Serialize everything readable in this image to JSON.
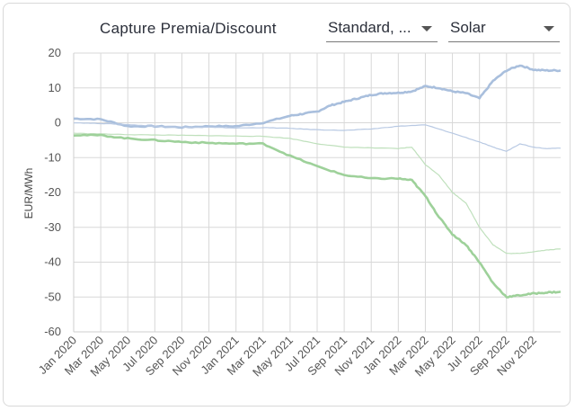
{
  "header": {
    "title": "Capture Premia/Discount",
    "method_select": "Standard, ...",
    "tech_select": "Solar"
  },
  "chart_data": {
    "type": "line",
    "ylabel": "EUR/MWh",
    "ylim": [
      -60,
      20
    ],
    "yticks": [
      20,
      10,
      0,
      -10,
      -20,
      -30,
      -40,
      -50,
      -60
    ],
    "xticks": [
      "Jan 2020",
      "Mar 2020",
      "May 2020",
      "Jul 2020",
      "Sep 2020",
      "Nov 2020",
      "Jan 2021",
      "Mar 2021",
      "May 2021",
      "Jul 2021",
      "Sep 2021",
      "Nov 2021",
      "Jan 2022",
      "Mar 2022",
      "May 2022",
      "Jul 2022",
      "Sep 2022",
      "Nov 2022"
    ],
    "grid": true,
    "series": [
      {
        "color": "#a9bfdd",
        "width": 2.6,
        "x": [
          "2020-01",
          "2020-03",
          "2020-05",
          "2020-07",
          "2020-09",
          "2020-11",
          "2021-01",
          "2021-03",
          "2021-05",
          "2021-06",
          "2021-07",
          "2021-08",
          "2021-09",
          "2021-10",
          "2021-11",
          "2021-12",
          "2022-01",
          "2022-02",
          "2022-03",
          "2022-04",
          "2022-05",
          "2022-06",
          "2022-07",
          "2022-08",
          "2022-09",
          "2022-10",
          "2022-11",
          "2022-12",
          "2023-01"
        ],
        "values": [
          1.2,
          1,
          -1,
          -1,
          -1.3,
          -1,
          -1,
          0,
          2,
          2.6,
          3.2,
          5,
          6,
          7,
          8,
          8.5,
          8.6,
          9,
          10.5,
          10,
          9,
          8.5,
          7,
          12,
          15,
          16.5,
          15.2,
          15,
          15
        ]
      },
      {
        "color": "#b8c9e3",
        "width": 1.2,
        "x": [
          "2020-01",
          "2020-03",
          "2020-05",
          "2020-07",
          "2020-09",
          "2020-11",
          "2021-01",
          "2021-03",
          "2021-05",
          "2021-07",
          "2021-09",
          "2021-11",
          "2022-01",
          "2022-03",
          "2022-05",
          "2022-07",
          "2022-08",
          "2022-09",
          "2022-10",
          "2022-11",
          "2022-12",
          "2023-01"
        ],
        "values": [
          0,
          -0.2,
          -0.5,
          -1,
          -1.2,
          -1.3,
          -1.5,
          -1.4,
          -1.6,
          -2,
          -2.2,
          -1.8,
          -1,
          -0.6,
          -3,
          -5.5,
          -7,
          -8.2,
          -6,
          -7,
          -7.4,
          -7.3
        ]
      },
      {
        "color": "#bfe0bc",
        "width": 1.2,
        "x": [
          "2020-01",
          "2020-03",
          "2020-05",
          "2020-07",
          "2020-09",
          "2020-11",
          "2021-01",
          "2021-03",
          "2021-05",
          "2021-07",
          "2021-09",
          "2021-11",
          "2022-01",
          "2022-02",
          "2022-03",
          "2022-04",
          "2022-05",
          "2022-06",
          "2022-07",
          "2022-08",
          "2022-09",
          "2022-10",
          "2022-11",
          "2022-12",
          "2023-01"
        ],
        "values": [
          -3,
          -3.2,
          -3.4,
          -3.5,
          -3.6,
          -3.7,
          -3.8,
          -3.9,
          -4.5,
          -6,
          -7,
          -7.2,
          -7.4,
          -7,
          -12,
          -15,
          -20,
          -23,
          -30,
          -35,
          -37.5,
          -37.5,
          -37,
          -36.5,
          -36.2
        ]
      },
      {
        "color": "#9ed19a",
        "width": 2.6,
        "x": [
          "2020-01",
          "2020-03",
          "2020-05",
          "2020-07",
          "2020-09",
          "2020-11",
          "2021-01",
          "2021-03",
          "2021-05",
          "2021-07",
          "2021-09",
          "2021-11",
          "2022-01",
          "2022-02",
          "2022-03",
          "2022-04",
          "2022-05",
          "2022-06",
          "2022-07",
          "2022-08",
          "2022-09",
          "2022-10",
          "2022-11",
          "2022-12",
          "2023-01"
        ],
        "values": [
          -3.5,
          -3.6,
          -4.5,
          -5,
          -5.5,
          -5.8,
          -6,
          -6,
          -9.5,
          -12.5,
          -15,
          -16,
          -16,
          -16.5,
          -21,
          -27,
          -32,
          -35,
          -40,
          -46,
          -50,
          -49.5,
          -49,
          -48.7,
          -48.5
        ]
      }
    ]
  }
}
